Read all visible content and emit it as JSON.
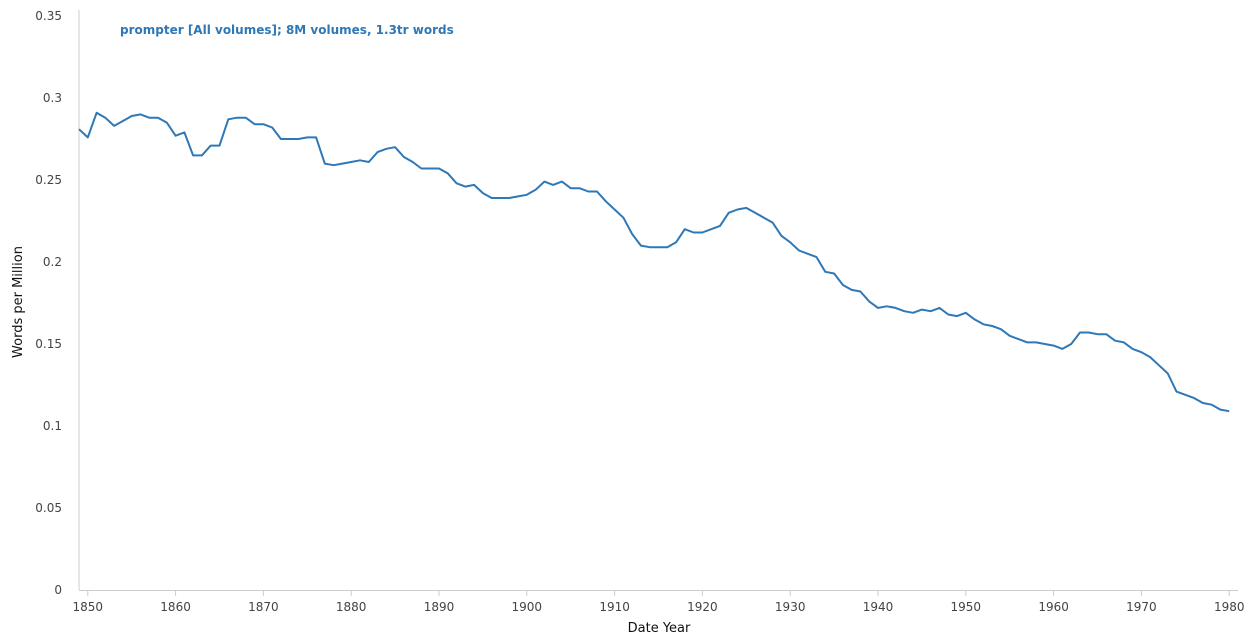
{
  "chart_data": {
    "type": "line",
    "title": "",
    "xlabel": "Date Year",
    "ylabel": "Words per Million",
    "xlim": [
      1849,
      1981
    ],
    "ylim": [
      0,
      0.35
    ],
    "x_ticks": [
      1850,
      1860,
      1870,
      1880,
      1890,
      1900,
      1910,
      1920,
      1930,
      1940,
      1950,
      1960,
      1970,
      1980
    ],
    "y_ticks": [
      0,
      0.05,
      0.1,
      0.15,
      0.2,
      0.25,
      0.3,
      0.35
    ],
    "y_tick_labels": [
      "0",
      "0.05",
      "0.1",
      "0.15",
      "0.2",
      "0.25",
      "0.3",
      "0.35"
    ],
    "grid": false,
    "legend_position": "top-left",
    "series": [
      {
        "name": "prompter [All volumes]; 8M volumes, 1.3tr words",
        "color": "#2e78b7",
        "x": [
          1849,
          1850,
          1851,
          1852,
          1853,
          1854,
          1855,
          1856,
          1857,
          1858,
          1859,
          1860,
          1861,
          1862,
          1863,
          1864,
          1865,
          1866,
          1867,
          1868,
          1869,
          1870,
          1871,
          1872,
          1873,
          1874,
          1875,
          1876,
          1877,
          1878,
          1879,
          1880,
          1881,
          1882,
          1883,
          1884,
          1885,
          1886,
          1887,
          1888,
          1889,
          1890,
          1891,
          1892,
          1893,
          1894,
          1895,
          1896,
          1897,
          1898,
          1899,
          1900,
          1901,
          1902,
          1903,
          1904,
          1905,
          1906,
          1907,
          1908,
          1909,
          1910,
          1911,
          1912,
          1913,
          1914,
          1915,
          1916,
          1917,
          1918,
          1919,
          1920,
          1921,
          1922,
          1923,
          1924,
          1925,
          1926,
          1927,
          1928,
          1929,
          1930,
          1931,
          1932,
          1933,
          1934,
          1935,
          1936,
          1937,
          1938,
          1939,
          1940,
          1941,
          1942,
          1943,
          1944,
          1945,
          1946,
          1947,
          1948,
          1949,
          1950,
          1951,
          1952,
          1953,
          1954,
          1955,
          1956,
          1957,
          1958,
          1959,
          1960,
          1961,
          1962,
          1963,
          1964,
          1965,
          1966,
          1967,
          1968,
          1969,
          1970,
          1971,
          1972,
          1973,
          1974,
          1975,
          1976,
          1977,
          1978,
          1979,
          1980
        ],
        "y": [
          0.281,
          0.276,
          0.291,
          0.288,
          0.283,
          0.286,
          0.289,
          0.29,
          0.288,
          0.288,
          0.285,
          0.277,
          0.279,
          0.265,
          0.265,
          0.271,
          0.271,
          0.287,
          0.288,
          0.288,
          0.284,
          0.284,
          0.282,
          0.275,
          0.275,
          0.275,
          0.276,
          0.276,
          0.26,
          0.259,
          0.26,
          0.261,
          0.262,
          0.261,
          0.267,
          0.269,
          0.27,
          0.264,
          0.261,
          0.257,
          0.257,
          0.257,
          0.254,
          0.248,
          0.246,
          0.247,
          0.242,
          0.239,
          0.239,
          0.239,
          0.24,
          0.241,
          0.244,
          0.249,
          0.247,
          0.249,
          0.245,
          0.245,
          0.243,
          0.243,
          0.237,
          0.232,
          0.227,
          0.217,
          0.21,
          0.209,
          0.209,
          0.209,
          0.212,
          0.22,
          0.218,
          0.218,
          0.22,
          0.222,
          0.23,
          0.232,
          0.233,
          0.23,
          0.227,
          0.224,
          0.216,
          0.212,
          0.207,
          0.205,
          0.203,
          0.194,
          0.193,
          0.186,
          0.183,
          0.182,
          0.176,
          0.172,
          0.173,
          0.172,
          0.17,
          0.169,
          0.171,
          0.17,
          0.172,
          0.168,
          0.167,
          0.169,
          0.165,
          0.162,
          0.161,
          0.159,
          0.155,
          0.153,
          0.151,
          0.151,
          0.15,
          0.149,
          0.147,
          0.15,
          0.157,
          0.157,
          0.156,
          0.156,
          0.152,
          0.151,
          0.147,
          0.145,
          0.142,
          0.137,
          0.132,
          0.121,
          0.119,
          0.117,
          0.114,
          0.113,
          0.11,
          0.109
        ]
      }
    ]
  }
}
